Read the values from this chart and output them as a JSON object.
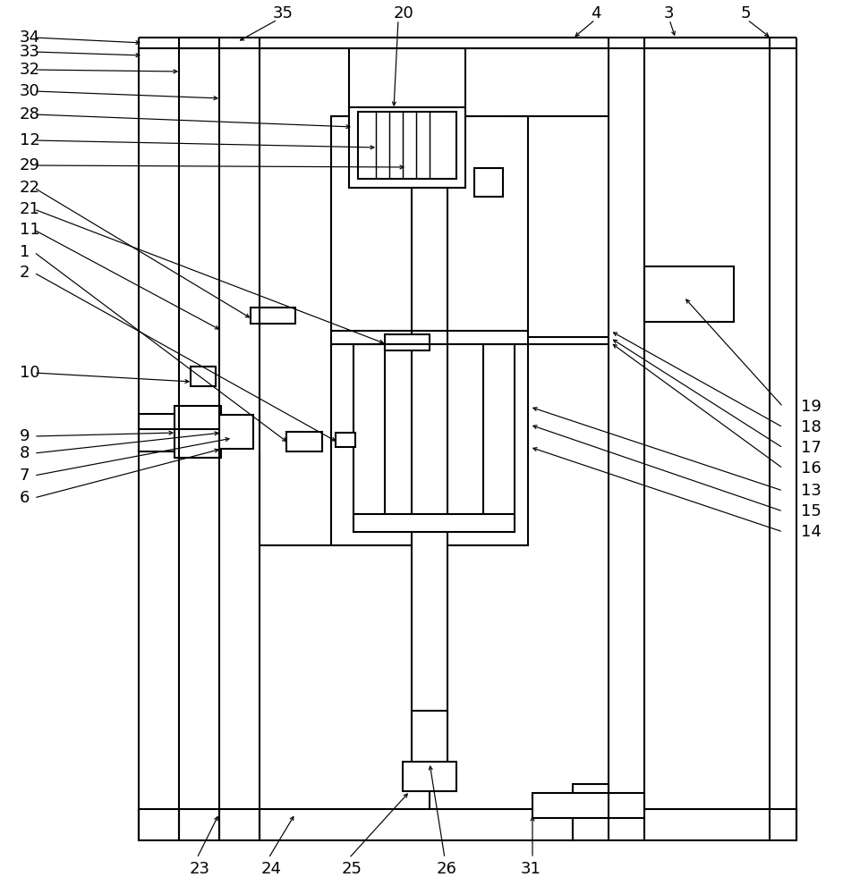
{
  "bg_color": "#ffffff",
  "lc": "#000000",
  "lw": 1.5,
  "fig_w": 9.62,
  "fig_h": 10.0
}
